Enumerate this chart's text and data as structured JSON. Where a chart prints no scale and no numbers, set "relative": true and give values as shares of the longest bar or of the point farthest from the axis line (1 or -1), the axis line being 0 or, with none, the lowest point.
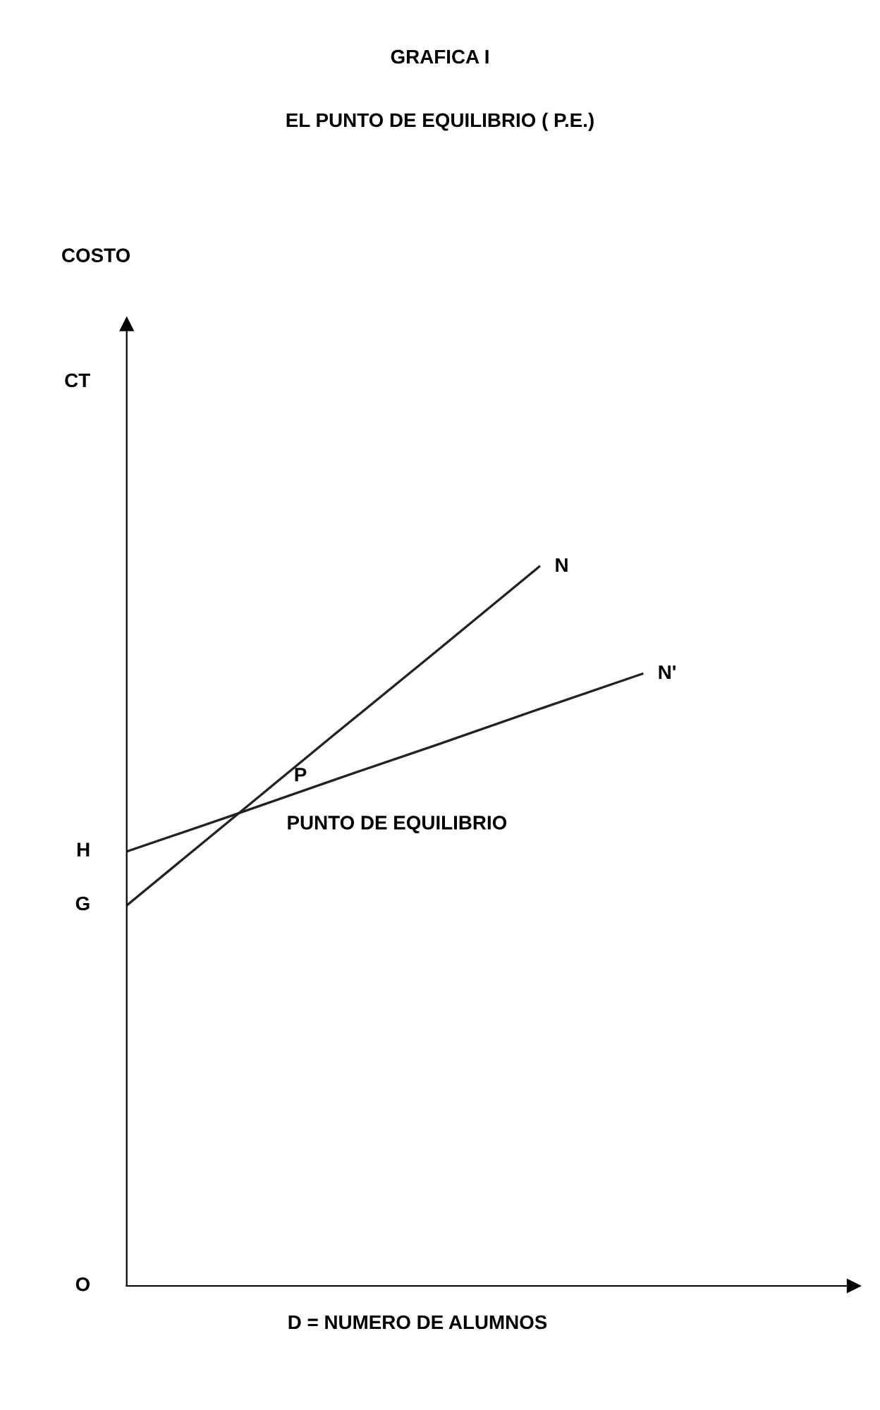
{
  "chart_data": {
    "type": "line",
    "title": "GRAFICA I",
    "subtitle": "EL PUNTO DE EQUILIBRIO ( P.E.)",
    "xlabel": "D = NUMERO DE ALUMNOS",
    "relative": true,
    "categories": [
      null,
      null,
      null,
      null,
      null,
      null
    ],
    "series": [
      {
        "name": "N",
        "color": "#222222",
        "values": [
          0.529,
          0.647,
          0.765,
          0.882,
          1.0,
          null
        ]
      },
      {
        "name": "N'",
        "color": "#222222",
        "values": [
          0.604,
          0.653,
          0.703,
          0.752,
          0.802,
          0.851
        ]
      }
    ],
    "annotations": [
      "COSTO",
      "CT",
      "H",
      "G",
      "O",
      "P",
      "PUNTO DE EQUILIBRIO"
    ],
    "marker": "none",
    "line_style": "solid",
    "grid": false,
    "legend": false
  }
}
